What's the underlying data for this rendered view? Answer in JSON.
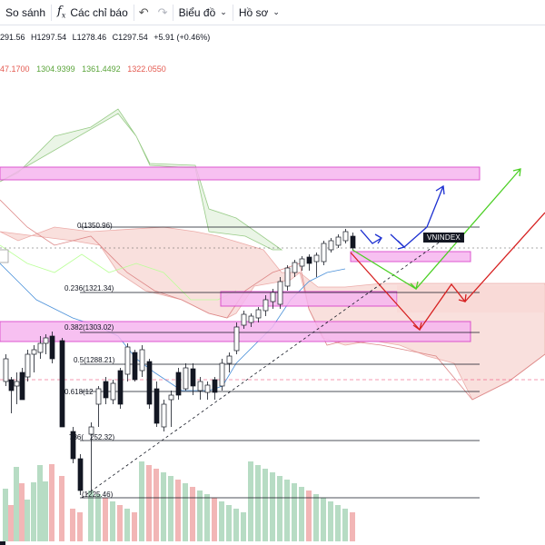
{
  "toolbar": {
    "compare_label": "So sánh",
    "indicators_label": "Các chỉ báo",
    "undo_icon": "undo-icon",
    "redo_icon": "redo-icon",
    "chart_type_label": "Biểu đồ",
    "profile_label": "Hồ sơ"
  },
  "ohlc": {
    "open": "291.56",
    "high": "H1297.54",
    "low": "L1278.46",
    "close": "C1297.54",
    "change": "+5.91 (+0.46%)"
  },
  "ichimoku": {
    "v1": "47.1700",
    "v2": "1304.9399",
    "v3": "1361.4492",
    "v4": "1322.0550",
    "c1": "#e45a50",
    "c2": "#5aa43a",
    "c3": "#5aa43a",
    "c4": "#e45a50"
  },
  "fib_labels": {
    "f0": "0(1350.96)",
    "f236": "0.236(1321.34)",
    "f382": "0.382(1303.02)",
    "f5": "0.5(1288.21)",
    "f618": "0.618(12",
    "f786": "786(",
    "f786b": "252.32)",
    "f1": "(1225.46)"
  },
  "symbol_tag": "VNINDEX",
  "colors": {
    "up": "#ffffff",
    "down": "#131722",
    "zone": "#f0a0e0",
    "cloud": "#f4c6c3",
    "vol_up": "#b7dcc4",
    "vol_down": "#f2b6b6",
    "fib_line": "#131722",
    "arrow_blue": "#1c2fd1",
    "arrow_green": "#4ccf25",
    "arrow_red": "#d62020"
  }
}
